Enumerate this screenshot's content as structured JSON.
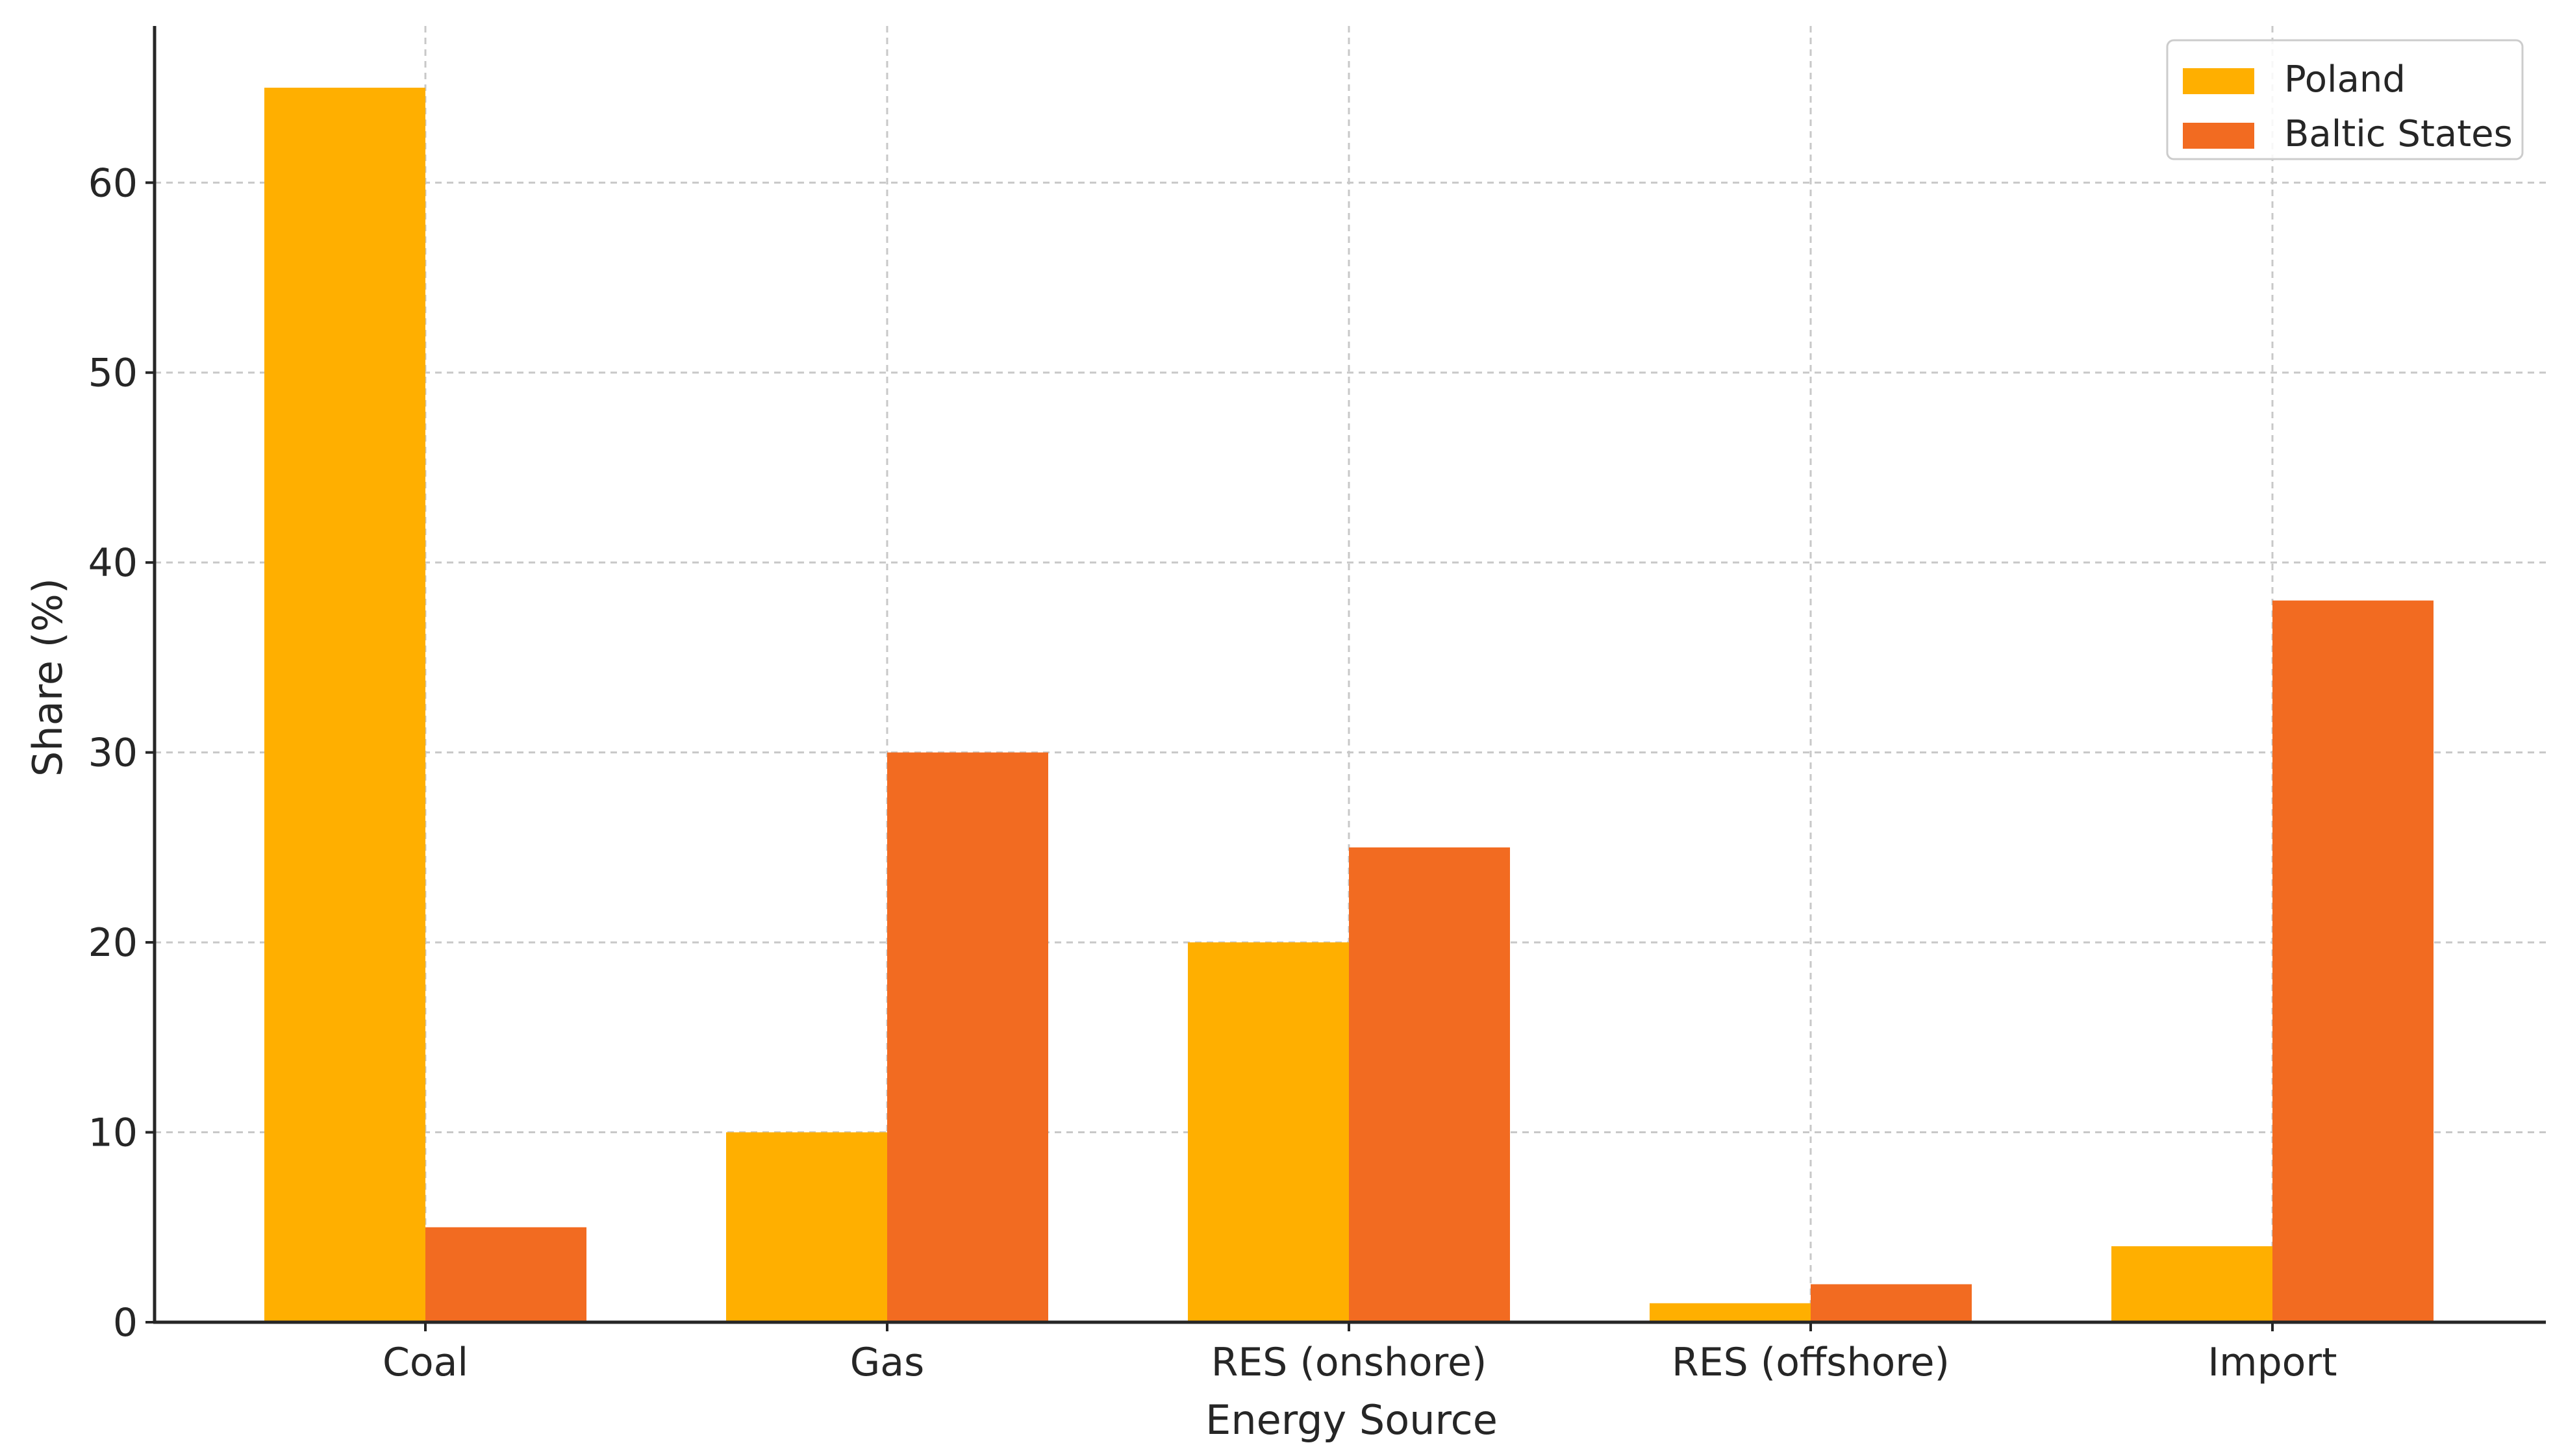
{
  "chart_data": {
    "type": "bar",
    "categories": [
      "Coal",
      "Gas",
      "RES (onshore)",
      "RES (offshore)",
      "Import"
    ],
    "series": [
      {
        "name": "Poland",
        "values": [
          65,
          10,
          20,
          1,
          4
        ],
        "color": "#FFAF00"
      },
      {
        "name": "Baltic States",
        "values": [
          5,
          30,
          25,
          2,
          38
        ],
        "color": "#F26B21"
      }
    ],
    "title": "",
    "xlabel": "Energy Source",
    "ylabel": "Share (%)",
    "ylim": [
      0,
      68.25
    ],
    "yticks": [
      0,
      10,
      20,
      30,
      40,
      50,
      60
    ],
    "grid": true,
    "legend_position": "top-right"
  }
}
